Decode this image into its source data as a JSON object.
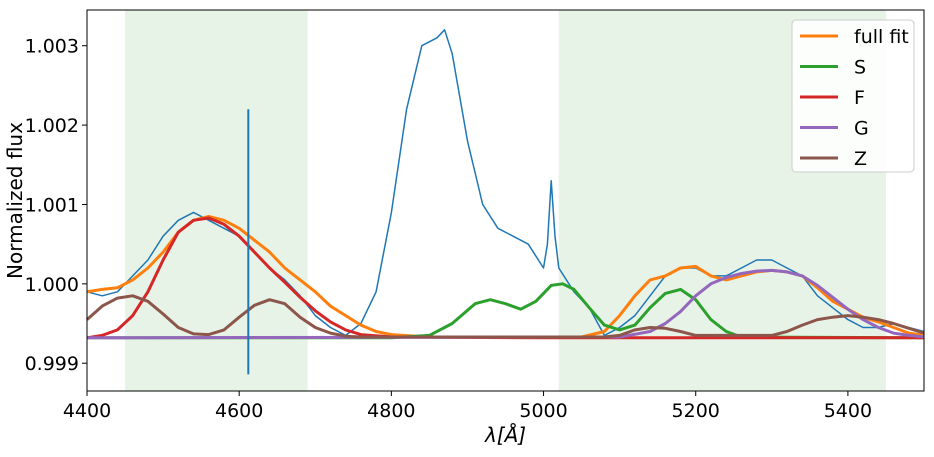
{
  "chart_data": {
    "type": "line",
    "xlabel": "λ[Å]",
    "ylabel": "Normalized flux",
    "xlim": [
      4400,
      5500
    ],
    "ylim": [
      0.99865,
      1.00345
    ],
    "x_ticks": [
      "4400",
      "4600",
      "4800",
      "5000",
      "5200",
      "5400"
    ],
    "y_ticks": [
      "0.999",
      "1.000",
      "1.001",
      "1.002",
      "1.003"
    ],
    "x_tick_values": [
      4400,
      4600,
      4800,
      5000,
      5200,
      5400
    ],
    "y_tick_values": [
      0.999,
      1.0,
      1.001,
      1.002,
      1.003
    ],
    "shaded_regions": [
      [
        4450,
        4690
      ],
      [
        5020,
        5450
      ]
    ],
    "shaded_color": "#e8f3e8",
    "legend_placement": "top-right",
    "legend": [
      "full fit",
      "S",
      "F",
      "G",
      "Z"
    ],
    "spike": {
      "x": 4612,
      "y_low": 0.99886,
      "y_high": 1.0022
    },
    "series": [
      {
        "color": "#1f77b4",
        "x": [
          4400,
          4420,
          4440,
          4460,
          4480,
          4500,
          4520,
          4540,
          4560,
          4580,
          4600,
          4620,
          4640,
          4660,
          4680,
          4700,
          4720,
          4740,
          4760,
          4780,
          4800,
          4820,
          4840,
          4860,
          4870,
          4880,
          4900,
          4920,
          4940,
          4960,
          4980,
          5000,
          5005,
          5010,
          5015,
          5020,
          5040,
          5060,
          5080,
          5100,
          5120,
          5140,
          5160,
          5180,
          5200,
          5220,
          5240,
          5260,
          5280,
          5300,
          5320,
          5340,
          5360,
          5380,
          5400,
          5420,
          5440,
          5460,
          5480,
          5500
        ],
        "y": [
          0.9999,
          0.99985,
          0.9999,
          1.0001,
          1.0003,
          1.0006,
          1.0008,
          1.0009,
          1.0008,
          1.0007,
          1.0006,
          1.0004,
          1.0002,
          1.00005,
          0.99985,
          0.9996,
          0.99945,
          0.99935,
          0.9995,
          0.9999,
          1.0009,
          1.0022,
          1.003,
          1.0031,
          1.0032,
          1.0029,
          1.0018,
          1.001,
          1.0007,
          1.0006,
          1.0005,
          1.0002,
          1.0005,
          1.0013,
          1.0006,
          1.0002,
          0.9999,
          0.9997,
          0.99935,
          0.99945,
          0.9996,
          0.99985,
          1.0001,
          1.0002,
          1.0002,
          1.0001,
          1.0001,
          1.0002,
          1.0003,
          1.0003,
          1.0002,
          1.0001,
          0.99985,
          0.9997,
          0.99955,
          0.99945,
          0.99945,
          0.9995,
          0.99945,
          0.9994
        ]
      },
      {
        "name": "full fit",
        "color": "#ff7f0e",
        "x": [
          4400,
          4420,
          4440,
          4460,
          4480,
          4500,
          4520,
          4540,
          4560,
          4580,
          4600,
          4620,
          4640,
          4660,
          4680,
          4700,
          4720,
          4740,
          4760,
          4780,
          4800,
          4850,
          4900,
          4950,
          5000,
          5050,
          5080,
          5100,
          5120,
          5140,
          5160,
          5180,
          5200,
          5220,
          5240,
          5260,
          5280,
          5300,
          5320,
          5340,
          5360,
          5380,
          5400,
          5420,
          5440,
          5460,
          5480,
          5500
        ],
        "y": [
          0.9999,
          0.99993,
          0.99995,
          1.00005,
          1.0002,
          1.0004,
          1.00065,
          1.0008,
          1.00085,
          1.0008,
          1.0007,
          1.00055,
          1.0004,
          1.0002,
          1.00005,
          0.9999,
          0.99972,
          0.9996,
          0.99948,
          0.9994,
          0.99936,
          0.99933,
          0.99933,
          0.99933,
          0.99933,
          0.99933,
          0.9994,
          0.9996,
          0.99985,
          1.00005,
          1.0001,
          1.0002,
          1.00022,
          1.0001,
          1.00005,
          1.0001,
          1.00015,
          1.00017,
          1.00015,
          1.0001,
          0.99995,
          0.99978,
          0.99968,
          0.99958,
          0.99952,
          0.99945,
          0.99938,
          0.99935
        ]
      },
      {
        "name": "S",
        "color": "#2ca02c",
        "x": [
          4400,
          4800,
          4850,
          4880,
          4910,
          4930,
          4950,
          4970,
          4990,
          5010,
          5025,
          5040,
          5060,
          5080,
          5100,
          5120,
          5140,
          5160,
          5180,
          5200,
          5220,
          5240,
          5260,
          5500
        ],
        "y": [
          0.99932,
          0.99932,
          0.99935,
          0.9995,
          0.99975,
          0.9998,
          0.99975,
          0.99968,
          0.99978,
          0.99998,
          1.0,
          0.99993,
          0.9997,
          0.99948,
          0.99942,
          0.99948,
          0.9997,
          0.99988,
          0.99993,
          0.9998,
          0.99955,
          0.9994,
          0.99933,
          0.99932
        ]
      },
      {
        "name": "F",
        "color": "#d62728",
        "x": [
          4400,
          4420,
          4440,
          4460,
          4480,
          4500,
          4520,
          4540,
          4560,
          4580,
          4600,
          4620,
          4640,
          4660,
          4680,
          4700,
          4720,
          4740,
          4760,
          4800,
          5000,
          5500
        ],
        "y": [
          0.99932,
          0.99935,
          0.99942,
          0.9996,
          0.9999,
          1.0003,
          1.00065,
          1.0008,
          1.00083,
          1.00075,
          1.0006,
          1.0004,
          1.0002,
          1.00002,
          0.99983,
          0.99966,
          0.99952,
          0.99942,
          0.99936,
          0.99933,
          0.99932,
          0.99932
        ]
      },
      {
        "name": "G",
        "color": "#9467bd",
        "x": [
          4400,
          5100,
          5140,
          5160,
          5180,
          5200,
          5220,
          5240,
          5260,
          5280,
          5300,
          5320,
          5340,
          5360,
          5380,
          5400,
          5420,
          5440,
          5460,
          5480,
          5500
        ],
        "y": [
          0.99932,
          0.99933,
          0.9994,
          0.9995,
          0.99965,
          0.99985,
          1.0,
          1.00008,
          1.00013,
          1.00016,
          1.00017,
          1.00015,
          1.0001,
          0.99998,
          0.99983,
          0.99968,
          0.99955,
          0.99945,
          0.99938,
          0.99935,
          0.99933
        ]
      },
      {
        "name": "Z",
        "color": "#8c564b",
        "x": [
          4400,
          4420,
          4440,
          4460,
          4480,
          4500,
          4520,
          4540,
          4560,
          4580,
          4600,
          4620,
          4640,
          4660,
          4680,
          4700,
          4720,
          4740,
          4760,
          5080,
          5100,
          5120,
          5140,
          5160,
          5180,
          5200,
          5300,
          5320,
          5340,
          5360,
          5380,
          5400,
          5420,
          5440,
          5460,
          5480,
          5500
        ],
        "y": [
          0.99955,
          0.99972,
          0.99982,
          0.99985,
          0.99978,
          0.99962,
          0.99945,
          0.99937,
          0.99936,
          0.99942,
          0.99958,
          0.99973,
          0.9998,
          0.99975,
          0.99958,
          0.99945,
          0.99938,
          0.99934,
          0.99933,
          0.99933,
          0.99935,
          0.99942,
          0.99945,
          0.99944,
          0.9994,
          0.99935,
          0.99935,
          0.9994,
          0.99948,
          0.99955,
          0.99958,
          0.9996,
          0.99958,
          0.99955,
          0.9995,
          0.99944,
          0.99938
        ]
      }
    ]
  }
}
